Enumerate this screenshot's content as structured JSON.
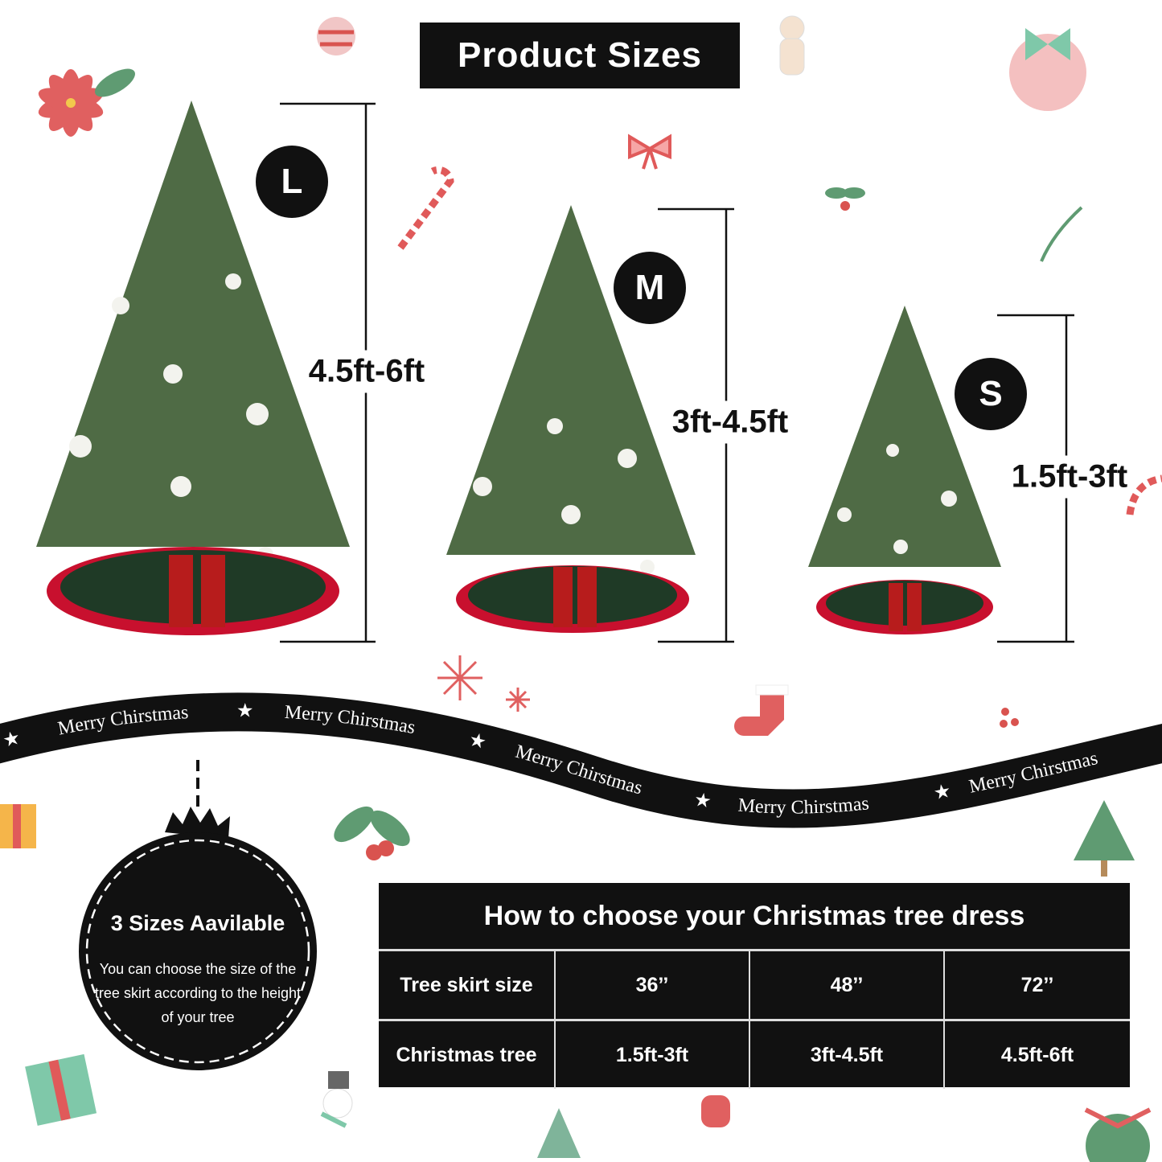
{
  "title": "Product Sizes",
  "sizes": [
    {
      "badge": "L",
      "range": "4.5ft-6ft"
    },
    {
      "badge": "M",
      "range": "3ft-4.5ft"
    },
    {
      "badge": "S",
      "range": "1.5ft-3ft"
    }
  ],
  "ribbon": {
    "labels": [
      "Merry Chirstmas",
      "Merry Chirstmas",
      "Merry Chirstmas",
      "Merry Chirstmas",
      "Merry Chirstmas"
    ],
    "star": "★"
  },
  "ornament": {
    "title": "3 Sizes Aavilable",
    "description": "You can choose the size of the tree skirt according to the height of your tree"
  },
  "table": {
    "heading": "How to choose your Christmas tree dress",
    "rows": [
      {
        "label": "Tree skirt size",
        "values": [
          "36’’",
          "48’’",
          "72’’"
        ]
      },
      {
        "label": "Christmas tree",
        "values": [
          "1.5ft-3ft",
          "3ft-4.5ft",
          "4.5ft-6ft"
        ]
      }
    ]
  },
  "colors": {
    "black": "#111111",
    "tree_green": "#4f6b45",
    "skirt_green": "#1f3a26",
    "skirt_red": "#c8102e",
    "accent_red": "#e06060"
  }
}
